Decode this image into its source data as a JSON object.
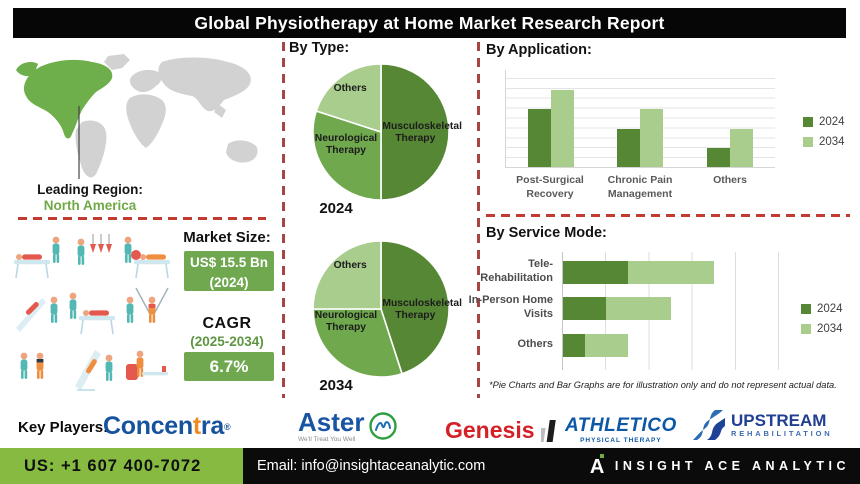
{
  "header": {
    "title": "Global Physiotherapy at Home Market Research Report"
  },
  "region": {
    "label": "Leading Region:",
    "value": "North America"
  },
  "market_size": {
    "label": "Market Size:",
    "value": "US$ 15.5 Bn",
    "year": "(2024)"
  },
  "cagr": {
    "label": "CAGR",
    "period": "(2025-2034)",
    "value": "6.7%"
  },
  "colors": {
    "dark_green": "#568735",
    "mid_green": "#6FA84D",
    "light_green": "#A9CD8D",
    "box_green": "#6FA84F",
    "footer_green": "#86BA40",
    "map_green": "#6EAE4B",
    "map_gray": "#D2D2D2",
    "divider_red_vertical": "#A64545",
    "divider_red_horizontal": "#C23B30",
    "text_green": "#6FAA47"
  },
  "chart_data": [
    {
      "type": "pie",
      "title": "By Type:",
      "year_label": "2024",
      "labels": [
        "Musculoskeletal Therapy",
        "Neurological Therapy",
        "Others"
      ],
      "values": [
        50,
        30,
        20
      ],
      "colors": [
        "#568735",
        "#6FA84D",
        "#A9CD8D"
      ]
    },
    {
      "type": "pie",
      "year_label": "2034",
      "labels": [
        "Musculoskeletal Therapy",
        "Neurological Therapy",
        "Others"
      ],
      "values": [
        45,
        30,
        25
      ],
      "colors": [
        "#568735",
        "#6FA84D",
        "#A9CD8D"
      ]
    },
    {
      "type": "bar",
      "title": "By Application:",
      "categories": [
        "Post-Surgical Recovery",
        "Chronic Pain Management",
        "Others"
      ],
      "series": [
        {
          "name": "2024",
          "color": "#568735",
          "values": [
            60,
            40,
            20
          ]
        },
        {
          "name": "2034",
          "color": "#A9CD8D",
          "values": [
            80,
            60,
            40
          ]
        }
      ],
      "ylim": [
        0,
        100
      ],
      "grid": true,
      "legend_position": "right"
    },
    {
      "type": "bar-horizontal-stacked",
      "title": "By Service Mode:",
      "categories": [
        "Tele-Rehabilitation",
        "In-Person Home Visits",
        "Others"
      ],
      "series": [
        {
          "name": "2024",
          "color": "#568735",
          "values": [
            30,
            20,
            10
          ]
        },
        {
          "name": "2034",
          "color": "#A9CD8D",
          "values": [
            40,
            30,
            20
          ]
        }
      ],
      "xlim": [
        0,
        100
      ],
      "grid": true,
      "legend_position": "right",
      "footnote": "*Pie Charts and Bar Graphs are for illustration only and do not represent actual data."
    }
  ],
  "key_players": {
    "label": "Key Players:",
    "concentra": {
      "part1": "Concen",
      "part2": "t",
      "part3": "ra",
      "reg": "®"
    },
    "aster": {
      "name": "Aster",
      "tagline": "We'll Treat You Well"
    },
    "genesis": {
      "name": "Genesis"
    },
    "athletico": {
      "name": "ATHLETICO",
      "sub": "PHYSICAL THERAPY"
    },
    "upstream": {
      "name": "UPSTREAM",
      "sub": "REHABILITATION"
    }
  },
  "footer": {
    "phone": "US: +1 607 400-7072",
    "email": "Email: info@insightaceanalytic.com",
    "brand": "INSIGHT ACE ANALYTIC"
  }
}
